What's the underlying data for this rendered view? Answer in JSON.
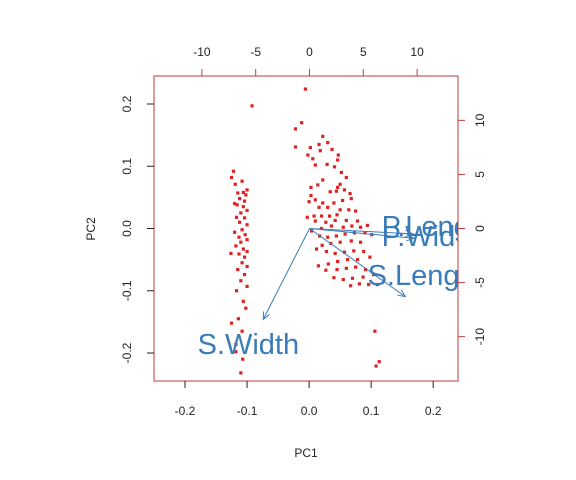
{
  "chart_data": {
    "type": "scatter",
    "title": "",
    "xlabel": "PC1",
    "ylabel": "PC2",
    "xlim": [
      -0.25,
      0.24
    ],
    "ylim": [
      -0.245,
      0.245
    ],
    "x_ticks": [
      -0.2,
      -0.1,
      0.0,
      0.1,
      0.2
    ],
    "x_tick_labels": [
      "-0.2",
      "-0.1",
      "0.0",
      "0.1",
      "0.2"
    ],
    "y_ticks": [
      -0.2,
      -0.1,
      0.0,
      0.1,
      0.2
    ],
    "y_tick_labels": [
      "-0.2",
      "-0.1",
      "0.0",
      "0.1",
      "0.2"
    ],
    "top_xlim": [
      -14.45,
      13.8
    ],
    "top_ticks": [
      -10,
      -5,
      0,
      5,
      10
    ],
    "top_tick_labels": [
      "-10",
      "-5",
      "0",
      "5",
      "10"
    ],
    "right_ylim": [
      -14.1,
      14.1
    ],
    "right_ticks": [
      -10,
      -5,
      0,
      5,
      10
    ],
    "right_tick_labels": [
      "-10",
      "-5",
      "0",
      "5",
      "10"
    ],
    "grid": false,
    "point_color": "#dd2222",
    "arrow_color": "#3a7cb8",
    "frame_color": "#c0393b",
    "points": [
      [
        -0.092,
        0.197
      ],
      [
        -0.122,
        0.092
      ],
      [
        -0.125,
        0.082
      ],
      [
        -0.108,
        0.076
      ],
      [
        -0.1,
        0.062
      ],
      [
        -0.119,
        0.071
      ],
      [
        -0.115,
        0.057
      ],
      [
        -0.106,
        0.058
      ],
      [
        -0.102,
        0.054
      ],
      [
        -0.112,
        0.048
      ],
      [
        -0.116,
        0.038
      ],
      [
        -0.104,
        0.044
      ],
      [
        -0.12,
        0.04
      ],
      [
        -0.106,
        0.035
      ],
      [
        -0.1,
        0.029
      ],
      [
        -0.11,
        0.025
      ],
      [
        -0.117,
        0.018
      ],
      [
        -0.104,
        0.017
      ],
      [
        -0.112,
        0.01
      ],
      [
        -0.1,
        0.006
      ],
      [
        -0.108,
        -0.002
      ],
      [
        -0.12,
        -0.006
      ],
      [
        -0.103,
        -0.01
      ],
      [
        -0.113,
        -0.014
      ],
      [
        -0.1,
        -0.018
      ],
      [
        -0.11,
        -0.022
      ],
      [
        -0.118,
        -0.028
      ],
      [
        -0.106,
        -0.033
      ],
      [
        -0.1,
        -0.037
      ],
      [
        -0.113,
        -0.041
      ],
      [
        -0.104,
        -0.046
      ],
      [
        -0.126,
        -0.04
      ],
      [
        -0.108,
        -0.055
      ],
      [
        -0.1,
        -0.061
      ],
      [
        -0.115,
        -0.066
      ],
      [
        -0.104,
        -0.074
      ],
      [
        -0.11,
        -0.084
      ],
      [
        -0.1,
        -0.093
      ],
      [
        -0.117,
        -0.1
      ],
      [
        -0.106,
        -0.117
      ],
      [
        -0.102,
        -0.128
      ],
      [
        -0.125,
        -0.152
      ],
      [
        -0.114,
        -0.145
      ],
      [
        -0.108,
        -0.165
      ],
      [
        -0.118,
        -0.186
      ],
      [
        -0.118,
        -0.198
      ],
      [
        -0.107,
        -0.21
      ],
      [
        -0.11,
        -0.232
      ],
      [
        -0.006,
        0.224
      ],
      [
        -0.012,
        0.17
      ],
      [
        -0.022,
        0.16
      ],
      [
        0.016,
        0.135
      ],
      [
        0.022,
        0.148
      ],
      [
        0.037,
        0.127
      ],
      [
        0.03,
        0.138
      ],
      [
        0.047,
        0.118
      ],
      [
        0.046,
        0.11
      ],
      [
        -0.022,
        0.131
      ],
      [
        0.002,
        0.13
      ],
      [
        0.018,
        0.125
      ],
      [
        -0.002,
        0.118
      ],
      [
        0.006,
        0.112
      ],
      [
        0.01,
        0.102
      ],
      [
        0.029,
        0.103
      ],
      [
        0.041,
        0.099
      ],
      [
        0.052,
        0.09
      ],
      [
        0.06,
        0.082
      ],
      [
        0.05,
        0.071
      ],
      [
        0.046,
        0.066
      ],
      [
        0.057,
        0.062
      ],
      [
        0.022,
        0.078
      ],
      [
        0.014,
        0.07
      ],
      [
        0.003,
        0.066
      ],
      [
        0.034,
        0.059
      ],
      [
        0.044,
        0.06
      ],
      [
        0.066,
        0.056
      ],
      [
        0.068,
        0.048
      ],
      [
        0.054,
        0.045
      ],
      [
        0.04,
        0.041
      ],
      [
        0.022,
        0.041
      ],
      [
        0.01,
        0.046
      ],
      [
        0.003,
        0.053
      ],
      [
        0.0,
        0.043
      ],
      [
        0.016,
        0.034
      ],
      [
        0.03,
        0.034
      ],
      [
        0.05,
        0.03
      ],
      [
        0.064,
        0.03
      ],
      [
        0.075,
        0.028
      ],
      [
        0.045,
        0.022
      ],
      [
        0.033,
        0.02
      ],
      [
        0.02,
        0.02
      ],
      [
        0.008,
        0.02
      ],
      [
        -0.003,
        0.018
      ],
      [
        0.01,
        0.012
      ],
      [
        0.027,
        0.01
      ],
      [
        0.042,
        0.013
      ],
      [
        0.06,
        0.013
      ],
      [
        0.078,
        0.012
      ],
      [
        0.094,
        0.005
      ],
      [
        0.083,
        0.002
      ],
      [
        0.069,
        0.004
      ],
      [
        0.055,
        0.002
      ],
      [
        0.036,
        0.004
      ],
      [
        0.02,
        0.0
      ],
      [
        0.004,
        -0.004
      ],
      [
        0.017,
        -0.012
      ],
      [
        0.03,
        -0.014
      ],
      [
        0.044,
        -0.012
      ],
      [
        0.058,
        -0.009
      ],
      [
        0.073,
        -0.007
      ],
      [
        0.09,
        -0.007
      ],
      [
        0.101,
        -0.01
      ],
      [
        0.083,
        -0.022
      ],
      [
        0.068,
        -0.02
      ],
      [
        0.05,
        -0.022
      ],
      [
        0.035,
        -0.024
      ],
      [
        0.021,
        -0.027
      ],
      [
        0.012,
        -0.033
      ],
      [
        0.028,
        -0.037
      ],
      [
        0.042,
        -0.04
      ],
      [
        0.057,
        -0.038
      ],
      [
        0.072,
        -0.036
      ],
      [
        0.088,
        -0.037
      ],
      [
        0.098,
        -0.046
      ],
      [
        0.078,
        -0.05
      ],
      [
        0.062,
        -0.05
      ],
      [
        0.046,
        -0.053
      ],
      [
        0.031,
        -0.057
      ],
      [
        0.015,
        -0.06
      ],
      [
        0.027,
        -0.067
      ],
      [
        0.045,
        -0.066
      ],
      [
        0.06,
        -0.064
      ],
      [
        0.075,
        -0.062
      ],
      [
        0.091,
        -0.066
      ],
      [
        0.104,
        -0.074
      ],
      [
        0.087,
        -0.078
      ],
      [
        0.07,
        -0.08
      ],
      [
        0.055,
        -0.082
      ],
      [
        0.04,
        -0.079
      ],
      [
        0.096,
        -0.09
      ],
      [
        0.081,
        -0.089
      ],
      [
        0.067,
        -0.092
      ],
      [
        0.11,
        -0.09
      ],
      [
        0.106,
        -0.165
      ],
      [
        0.108,
        -0.221
      ],
      [
        0.113,
        -0.214
      ]
    ],
    "vectors": [
      {
        "label": "S.Length",
        "end": [
          8.9,
          -6.3
        ]
      },
      {
        "label": "S.Width",
        "end": [
          -4.3,
          -8.4
        ]
      },
      {
        "label": "P.Length",
        "end": [
          9.6,
          -0.5
        ]
      },
      {
        "label": "P.Width",
        "end": [
          9.7,
          -0.9
        ]
      }
    ],
    "vector_labels": [
      {
        "text": "S.Width",
        "pos": [
          -10.4,
          -10.9
        ]
      },
      {
        "text": "S.Length",
        "pos": [
          5.4,
          -4.5
        ]
      },
      {
        "text": "P.Length",
        "pos": [
          6.7,
          0.0
        ]
      },
      {
        "text": "P.Width",
        "pos": [
          6.7,
          -0.9
        ]
      }
    ]
  }
}
